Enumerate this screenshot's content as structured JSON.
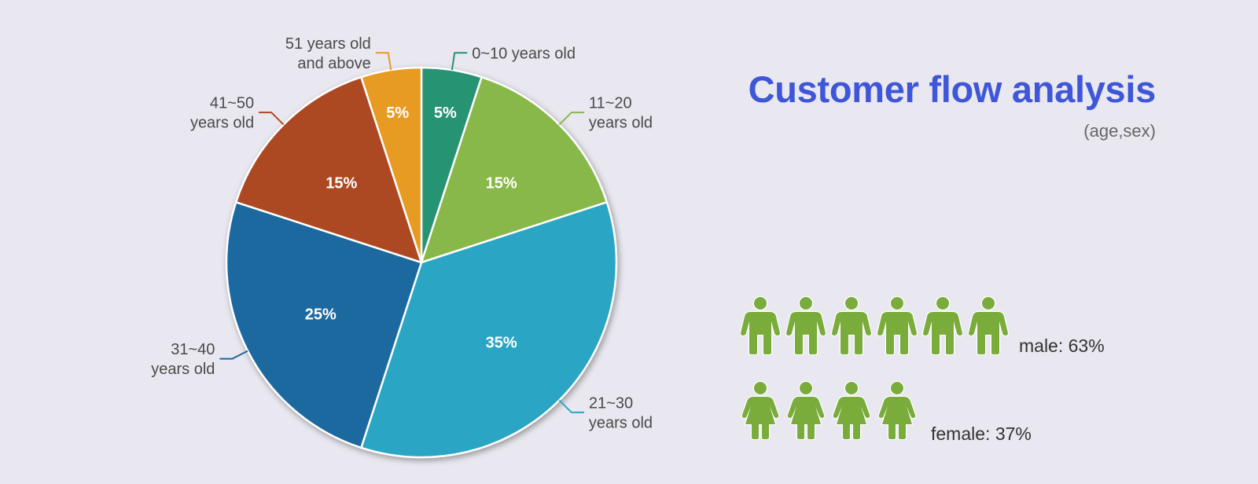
{
  "header": {
    "title": "Customer flow analysis",
    "subtitle": "(age,sex)"
  },
  "chart_data": {
    "type": "pie",
    "title": "Customer flow analysis",
    "subtitle": "(age,sex)",
    "slices": [
      {
        "label": "0~10 years old",
        "label_lines": [
          "0~10 years old"
        ],
        "value": 5,
        "value_label": "5%",
        "color": "#259473"
      },
      {
        "label": "11~20 years old",
        "label_lines": [
          "11~20",
          "years old"
        ],
        "value": 15,
        "value_label": "15%",
        "color": "#88b84a"
      },
      {
        "label": "21~30 years old",
        "label_lines": [
          "21~30",
          "years old"
        ],
        "value": 35,
        "value_label": "35%",
        "color": "#2aa5c4"
      },
      {
        "label": "31~40 years old",
        "label_lines": [
          "31~40",
          "years old"
        ],
        "value": 25,
        "value_label": "25%",
        "color": "#1c69a0"
      },
      {
        "label": "41~50 years old",
        "label_lines": [
          "41~50",
          "years old"
        ],
        "value": 15,
        "value_label": "15%",
        "color": "#ad4820"
      },
      {
        "label": "51 years old and above",
        "label_lines": [
          "51 years old",
          "and above"
        ],
        "value": 5,
        "value_label": "5%",
        "color": "#e89b22"
      }
    ]
  },
  "gender": {
    "male": {
      "label": "male: 63%",
      "value": 63,
      "icon_count": 6,
      "icon": "male-person-icon"
    },
    "female": {
      "label": "female: 37%",
      "value": 37,
      "icon_count": 4,
      "icon": "female-person-icon"
    },
    "icon_color": "#7aac3c"
  }
}
